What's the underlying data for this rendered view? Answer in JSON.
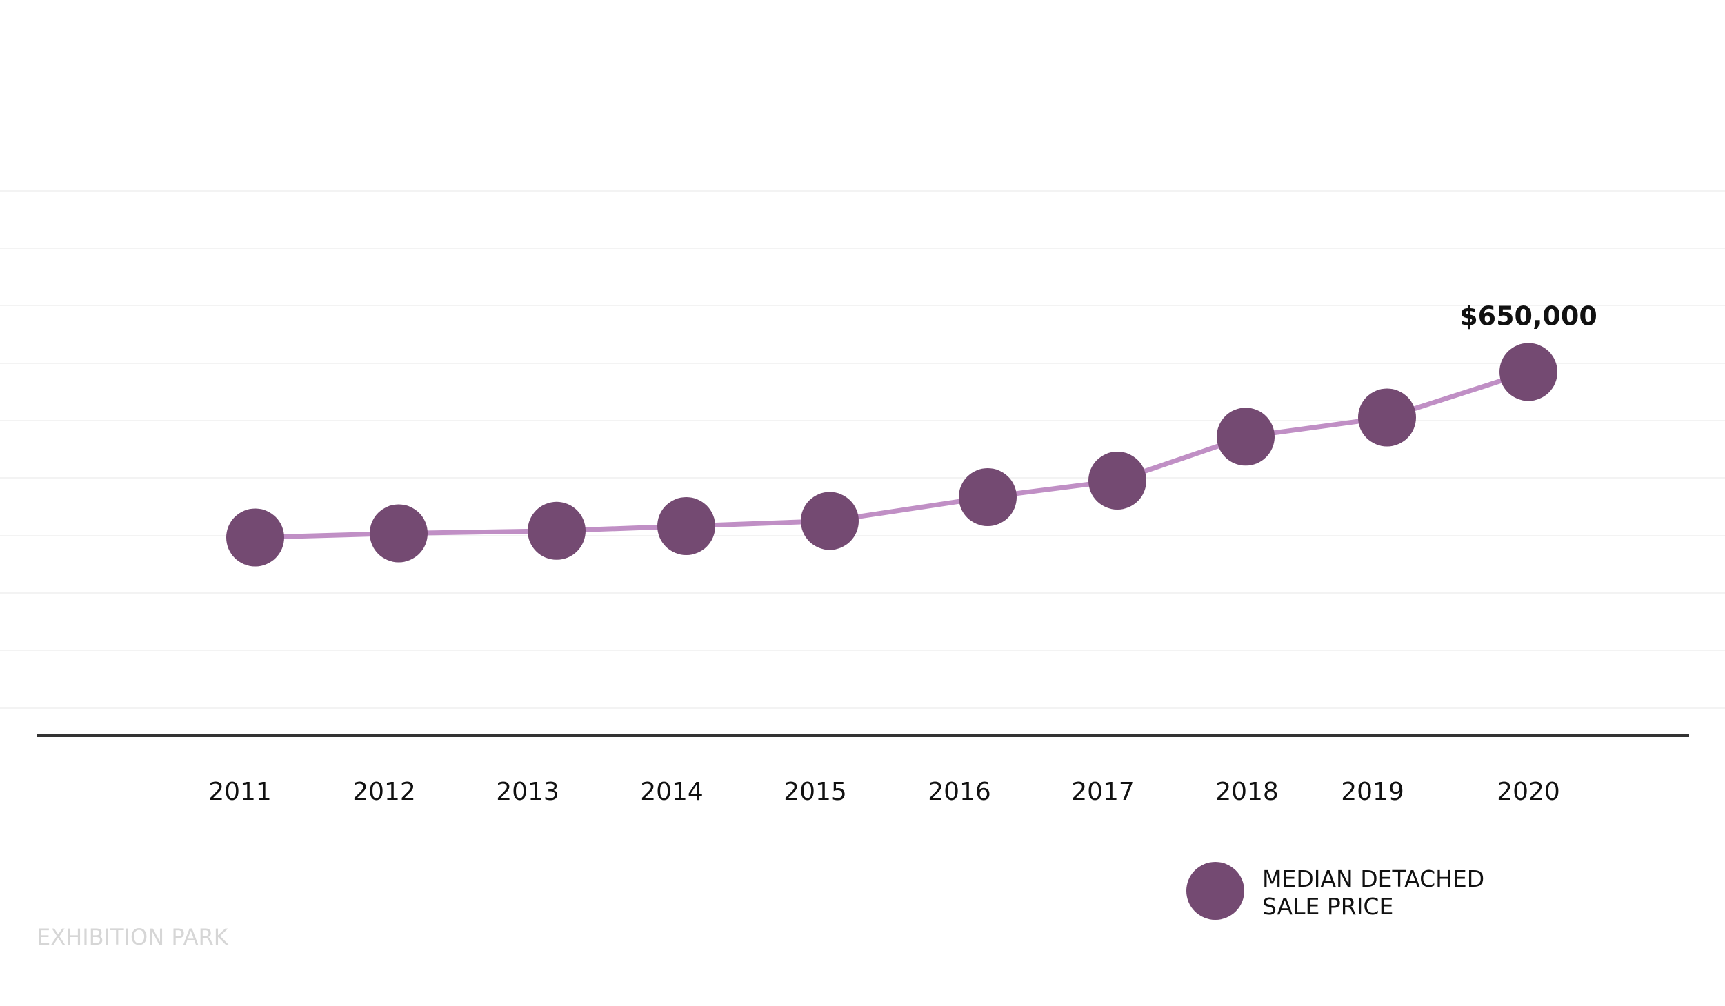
{
  "chart_data": {
    "type": "line",
    "x": [
      "2011",
      "2012",
      "2013",
      "2014",
      "2015",
      "2016",
      "2017",
      "2018",
      "2019",
      "2020"
    ],
    "series": [
      {
        "name": "MEDIAN DETACHED SALE PRICE",
        "values": [
          330000,
          338000,
          343000,
          352000,
          362000,
          408000,
          440000,
          525000,
          562000,
          650000
        ]
      }
    ],
    "ylim": [
      0,
      1000000
    ],
    "grid": true,
    "legend": "bottom-right",
    "annotation": {
      "label": "$650,000",
      "index": 9
    },
    "colors": {
      "line": "#c08fc5",
      "marker": "#744a72",
      "axis": "#333333",
      "grid": "#f3f3f3"
    }
  },
  "legend": {
    "line1": "MEDIAN DETACHED",
    "line2": "SALE PRICE"
  },
  "footer": {
    "location": "EXHIBITION PARK"
  }
}
